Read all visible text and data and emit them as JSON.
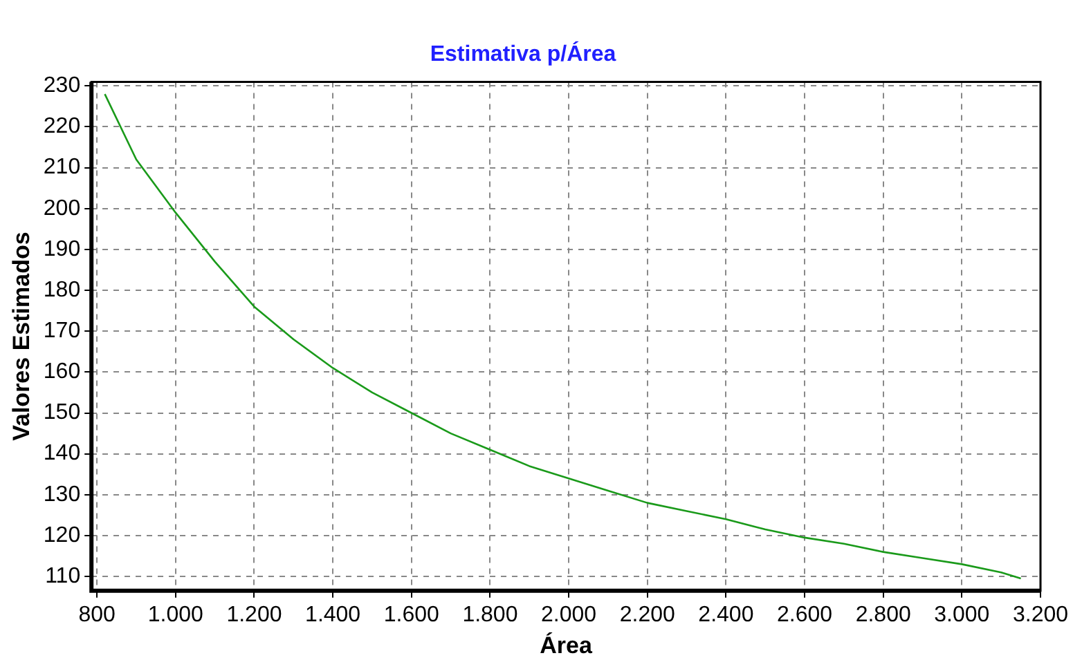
{
  "chart_data": {
    "type": "line",
    "title": "Estimativa p/Área",
    "xlabel": "Área",
    "ylabel": "Valores Estimados",
    "x": [
      820,
      900,
      1000,
      1100,
      1200,
      1300,
      1400,
      1500,
      1600,
      1700,
      1800,
      1900,
      2000,
      2100,
      2200,
      2300,
      2400,
      2500,
      2600,
      2700,
      2800,
      2900,
      3000,
      3100,
      3150
    ],
    "series": [
      {
        "color": "#1a9a1a",
        "values": [
          228,
          212,
          199,
          187,
          176,
          168,
          161,
          155,
          150,
          145,
          141,
          137,
          134,
          131,
          128,
          126,
          124,
          121.5,
          119.5,
          118,
          116,
          114.5,
          113,
          111,
          109.5
        ]
      }
    ],
    "xlim": [
      786,
      3200
    ],
    "ylim": [
      106.5,
      231
    ],
    "xticks": [
      800,
      {
        "value": 1000,
        "label": "1.000"
      },
      {
        "value": 1200,
        "label": "1.200"
      },
      {
        "value": 1400,
        "label": "1.400"
      },
      {
        "value": 1600,
        "label": "1.600"
      },
      {
        "value": 1800,
        "label": "1.800"
      },
      {
        "value": 2000,
        "label": "2.000"
      },
      {
        "value": 2200,
        "label": "2.200"
      },
      {
        "value": 2400,
        "label": "2.400"
      },
      {
        "value": 2600,
        "label": "2.600"
      },
      {
        "value": 2800,
        "label": "2.800"
      },
      {
        "value": 3000,
        "label": "3.000"
      },
      {
        "value": 3200,
        "label": "3.200"
      }
    ],
    "yticks": [
      110,
      120,
      130,
      140,
      150,
      160,
      170,
      180,
      190,
      200,
      210,
      220,
      230
    ],
    "grid": true,
    "legend": false,
    "marker": "none",
    "line_style": "solid"
  }
}
